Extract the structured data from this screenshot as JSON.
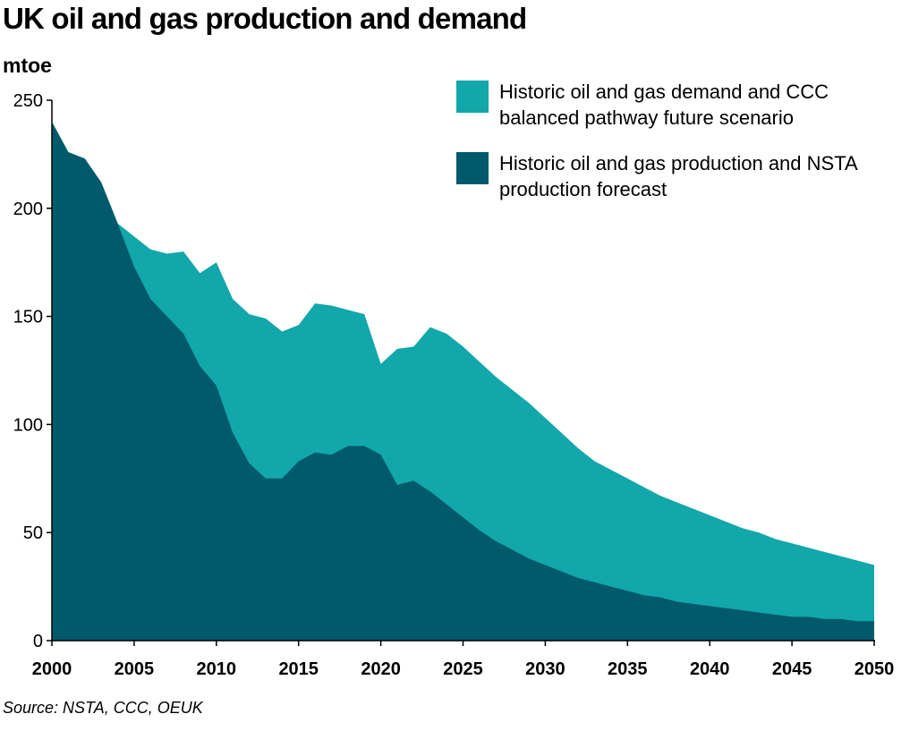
{
  "header": {
    "title": "UK oil and gas production and demand",
    "unit": "mtoe"
  },
  "footer": {
    "source": "Source: NSTA, CCC, OEUK"
  },
  "colors": {
    "demand": "#12A7AA",
    "production": "#005A6B",
    "axis": "#000000"
  },
  "chart_data": {
    "type": "area",
    "title": "UK oil and gas production and demand",
    "ylabel": "mtoe",
    "xlabel": "",
    "xlim": [
      2000,
      2050
    ],
    "ylim": [
      0,
      250
    ],
    "x_ticks": [
      2000,
      2005,
      2010,
      2015,
      2020,
      2025,
      2030,
      2035,
      2040,
      2045,
      2050
    ],
    "y_ticks": [
      0,
      50,
      100,
      150,
      200,
      250
    ],
    "grid": false,
    "legend_position": "top-right",
    "overlapping": true,
    "series": [
      {
        "name": "Historic oil and gas demand and CCC balanced pathway future scenario",
        "x": [
          2000,
          2001,
          2002,
          2003,
          2004,
          2005,
          2006,
          2007,
          2008,
          2009,
          2010,
          2011,
          2012,
          2013,
          2014,
          2015,
          2016,
          2017,
          2018,
          2019,
          2020,
          2021,
          2022,
          2023,
          2024,
          2025,
          2026,
          2027,
          2028,
          2029,
          2030,
          2031,
          2032,
          2033,
          2034,
          2035,
          2036,
          2037,
          2038,
          2039,
          2040,
          2041,
          2042,
          2043,
          2044,
          2045,
          2046,
          2047,
          2048,
          2049,
          2050
        ],
        "values": [
          240,
          226,
          223,
          212,
          193,
          187,
          181,
          179,
          180,
          170,
          175,
          158,
          151,
          149,
          143,
          146,
          156,
          155,
          153,
          151,
          128,
          135,
          136,
          145,
          142,
          136,
          129,
          122,
          116,
          110,
          103,
          96,
          89,
          83,
          79,
          75,
          71,
          67,
          64,
          61,
          58,
          55,
          52,
          50,
          47,
          45,
          43,
          41,
          39,
          37,
          35
        ]
      },
      {
        "name": "Historic oil and gas production and NSTA production forecast",
        "x": [
          2000,
          2001,
          2002,
          2003,
          2004,
          2005,
          2006,
          2007,
          2008,
          2009,
          2010,
          2011,
          2012,
          2013,
          2014,
          2015,
          2016,
          2017,
          2018,
          2019,
          2020,
          2021,
          2022,
          2023,
          2024,
          2025,
          2026,
          2027,
          2028,
          2029,
          2030,
          2031,
          2032,
          2033,
          2034,
          2035,
          2036,
          2037,
          2038,
          2039,
          2040,
          2041,
          2042,
          2043,
          2044,
          2045,
          2046,
          2047,
          2048,
          2049,
          2050
        ],
        "values": [
          240,
          226,
          223,
          212,
          193,
          173,
          158,
          150,
          142,
          127,
          118,
          96,
          82,
          75,
          75,
          83,
          87,
          86,
          90,
          90,
          86,
          72,
          74,
          69,
          63,
          57,
          51,
          46,
          42,
          38,
          35,
          32,
          29,
          27,
          25,
          23,
          21,
          20,
          18,
          17,
          16,
          15,
          14,
          13,
          12,
          11,
          11,
          10,
          10,
          9,
          9
        ]
      }
    ]
  }
}
